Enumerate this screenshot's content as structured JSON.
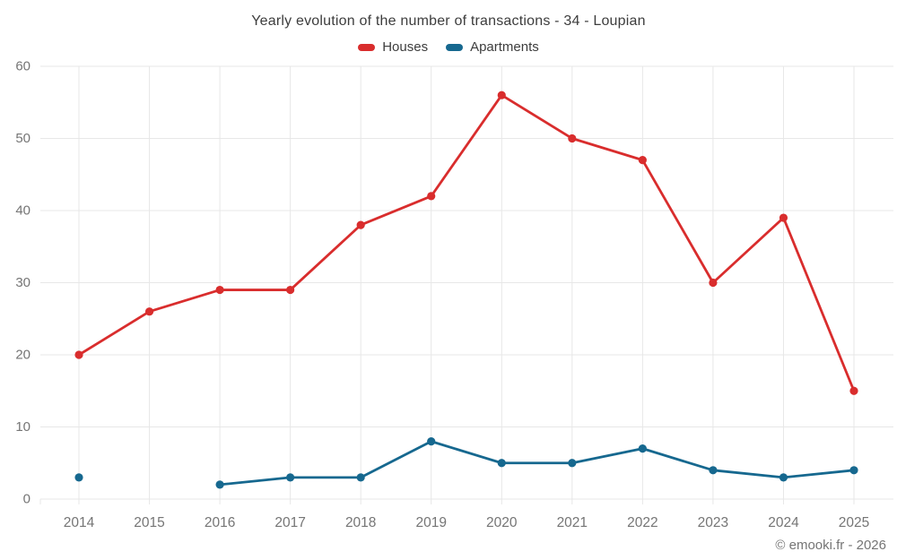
{
  "header": {
    "title": "Yearly evolution of the number of transactions - 34 - Loupian"
  },
  "legend": {
    "items": [
      {
        "label": "Houses",
        "color": "#d92d2d"
      },
      {
        "label": "Apartments",
        "color": "#16688f"
      }
    ]
  },
  "footer": {
    "text": "© emooki.fr - 2026"
  },
  "colors": {
    "houses": "#d92d2d",
    "apartments": "#16688f",
    "grid": "#e7e7e7",
    "tick_text": "#757575"
  },
  "chart_data": {
    "type": "line",
    "title": "Yearly evolution of the number of transactions - 34 - Loupian",
    "categories": [
      "2014",
      "2015",
      "2016",
      "2017",
      "2018",
      "2019",
      "2020",
      "2021",
      "2022",
      "2023",
      "2024",
      "2025"
    ],
    "series": [
      {
        "name": "Houses",
        "color": "#d92d2d",
        "values": [
          20,
          26,
          29,
          29,
          38,
          42,
          56,
          50,
          47,
          30,
          39,
          15
        ]
      },
      {
        "name": "Apartments",
        "color": "#16688f",
        "values": [
          3,
          null,
          2,
          3,
          3,
          8,
          5,
          5,
          7,
          4,
          3,
          4
        ]
      }
    ],
    "xlabel": "",
    "ylabel": "",
    "ylim": [
      0,
      60
    ],
    "ytick_step": 10,
    "yticks": [
      0,
      10,
      20,
      30,
      40,
      50,
      60
    ],
    "grid": true,
    "legend_position": "top"
  }
}
